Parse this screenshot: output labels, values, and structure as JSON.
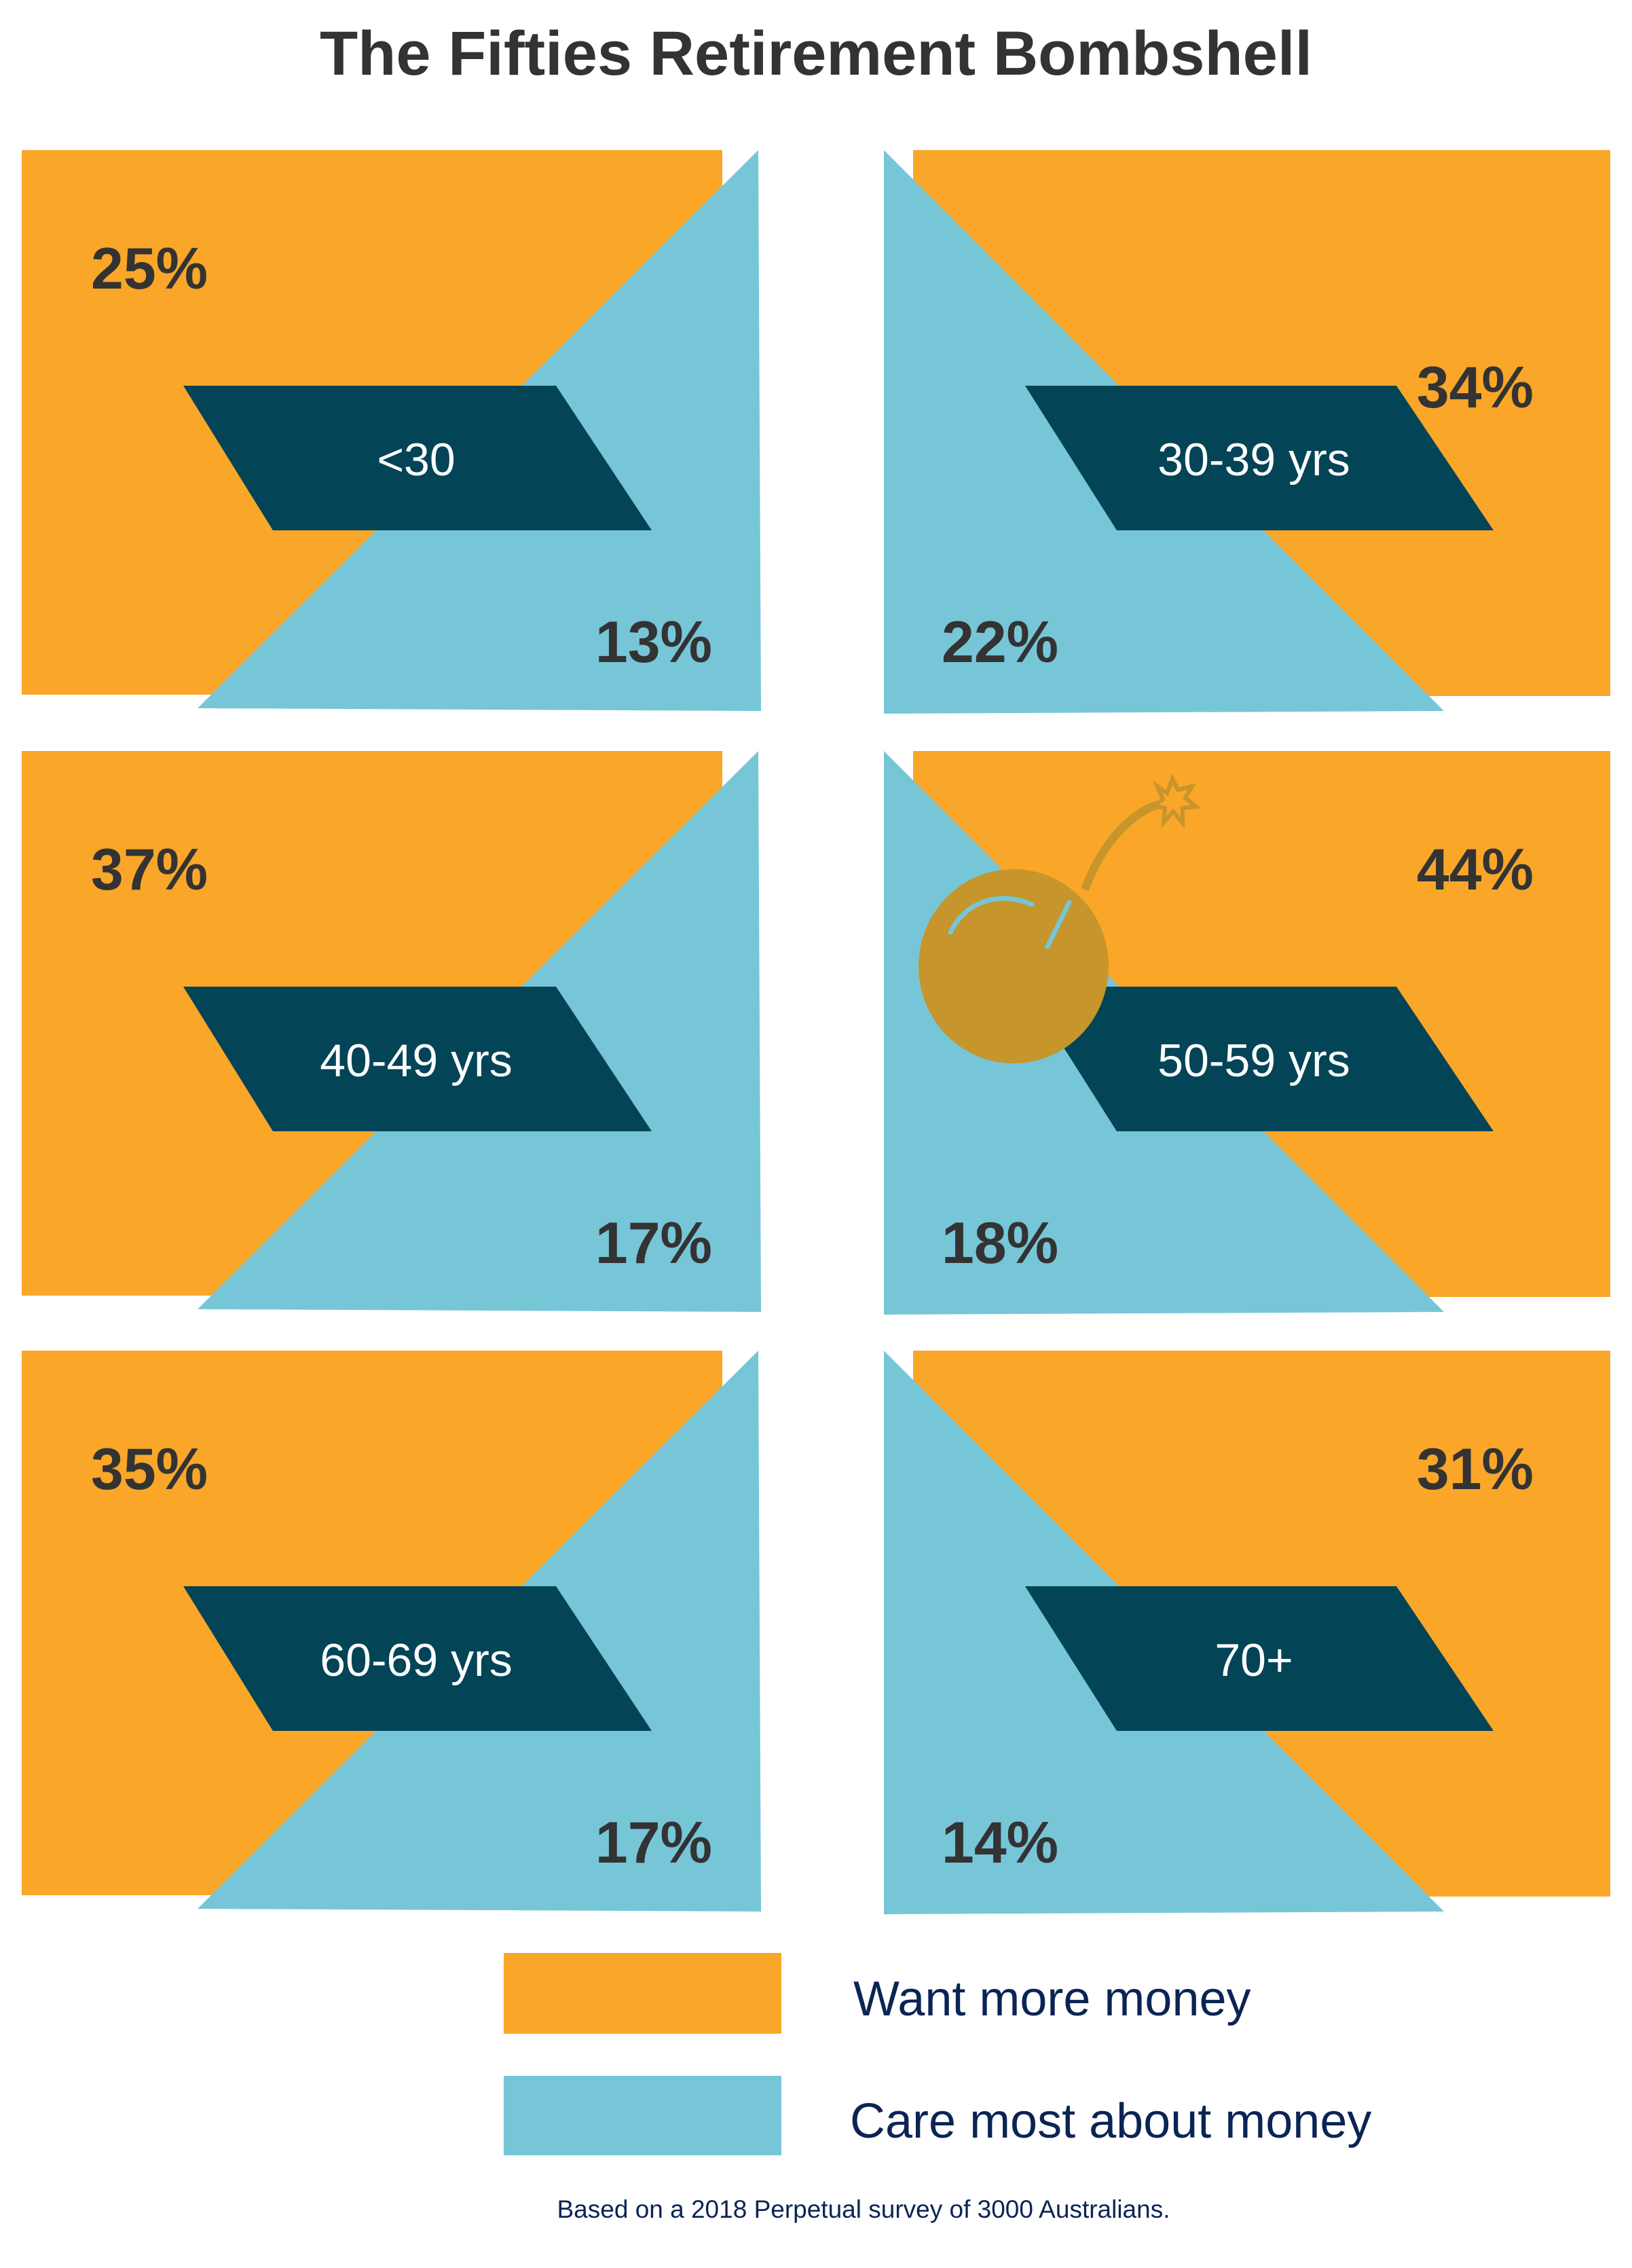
{
  "chart_data": {
    "type": "infographic-bar",
    "title": "The Fifties Retirement Bombshell",
    "categories": [
      "<30",
      "30-39 yrs",
      "40-49 yrs",
      "50-59 yrs",
      "60-69 yrs",
      "70+"
    ],
    "series": [
      {
        "name": "Want more money",
        "values": [
          25,
          34,
          37,
          44,
          35,
          31
        ],
        "labels": [
          "25%",
          "34%",
          "37%",
          "44%",
          "35%",
          "31%"
        ]
      },
      {
        "name": "Care most about money",
        "values": [
          13,
          22,
          17,
          18,
          17,
          14
        ],
        "labels": [
          "13%",
          "22%",
          "17%",
          "18%",
          "17%",
          "14%"
        ]
      }
    ],
    "highlight_category": "50-59 yrs",
    "highlight_icon": "bomb-icon",
    "legend_position": "bottom",
    "footnote": "Based on a 2018 Perpetual survey of 3000 Australians."
  },
  "colors": {
    "want": "#F9A629",
    "care": "#76C6D8",
    "label_bg": "#034457",
    "label_text": "#FFFFFF",
    "pct_text": "#333333",
    "title": "#333333",
    "legend_text": "#0B2455",
    "bomb": "#C6952B"
  }
}
